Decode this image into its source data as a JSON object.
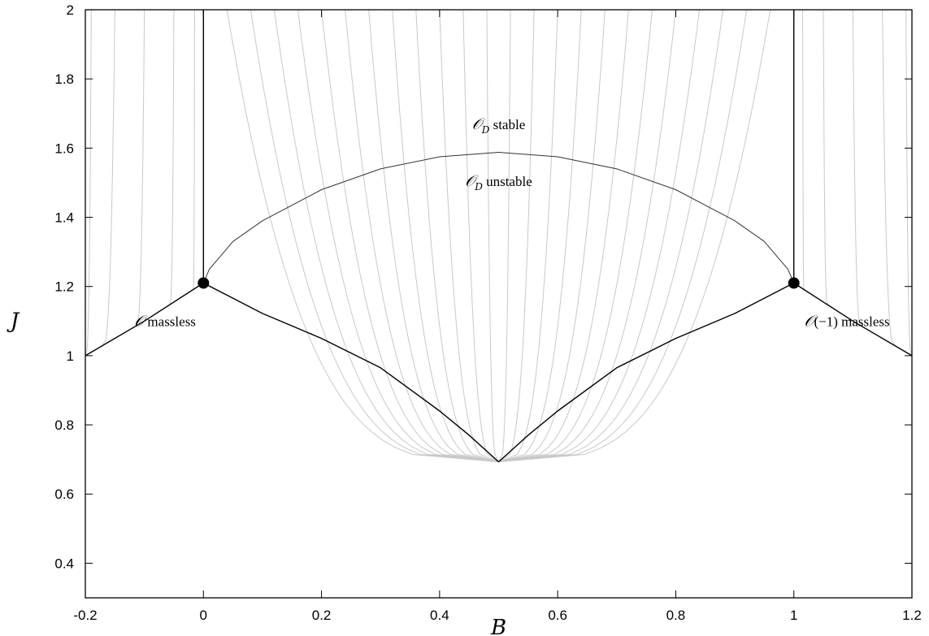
{
  "chart_data": {
    "type": "line",
    "title": "",
    "xlabel": "B",
    "ylabel": "J",
    "xlim": [
      -0.2,
      1.2
    ],
    "ylim": [
      0.3,
      2.0
    ],
    "x_ticks": [
      "-0.2",
      "0",
      "0.2",
      "0.4",
      "0.6",
      "0.8",
      "1",
      "1.2"
    ],
    "y_ticks": [
      "0.4",
      "0.6",
      "0.8",
      "1",
      "1.2",
      "1.4",
      "1.6",
      "1.8",
      "2"
    ],
    "grid": false,
    "legend": "none",
    "colors": {
      "boundary": "#000000",
      "flow": "#c8c8c8",
      "point": "#000000"
    },
    "tip": {
      "B": 0.5,
      "J": 0.693
    },
    "critical_points": [
      {
        "B": 0.0,
        "J": 1.21
      },
      {
        "B": 1.0,
        "J": 1.21
      }
    ],
    "series": [
      {
        "role": "lower-boundary-left",
        "x": [
          0.0,
          0.1,
          0.2,
          0.3,
          0.4,
          0.45,
          0.5
        ],
        "y": [
          1.21,
          1.122,
          1.05,
          0.965,
          0.84,
          0.77,
          0.693
        ]
      },
      {
        "role": "lower-boundary-right",
        "x": [
          0.5,
          0.55,
          0.6,
          0.7,
          0.8,
          0.9,
          1.0
        ],
        "y": [
          0.693,
          0.77,
          0.84,
          0.965,
          1.05,
          1.122,
          1.21
        ]
      },
      {
        "role": "outer-boundary-left",
        "x": [
          -0.2,
          -0.1,
          0.0
        ],
        "y": [
          1.0,
          1.1,
          1.21
        ]
      },
      {
        "role": "outer-boundary-right",
        "x": [
          1.0,
          1.1,
          1.2
        ],
        "y": [
          1.21,
          1.1,
          1.0
        ]
      },
      {
        "role": "vertical-left",
        "x": [
          0.0,
          0.0
        ],
        "y": [
          1.21,
          2.0
        ]
      },
      {
        "role": "vertical-right",
        "x": [
          1.0,
          1.0
        ],
        "y": [
          1.21,
          2.0
        ]
      },
      {
        "role": "stability-arc",
        "x": [
          0.0,
          0.01,
          0.05,
          0.1,
          0.2,
          0.3,
          0.4,
          0.5,
          0.6,
          0.7,
          0.8,
          0.9,
          0.95,
          0.99,
          1.0
        ],
        "y": [
          1.21,
          1.25,
          1.33,
          1.39,
          1.48,
          1.54,
          1.575,
          1.588,
          1.575,
          1.54,
          1.48,
          1.39,
          1.33,
          1.25,
          1.21
        ]
      }
    ],
    "flow_lines": {
      "inner_top_B": [
        0.04,
        0.08,
        0.12,
        0.16,
        0.2,
        0.24,
        0.28,
        0.32,
        0.36,
        0.4,
        0.44,
        0.48,
        0.52,
        0.56,
        0.6,
        0.64,
        0.68,
        0.72,
        0.76,
        0.8,
        0.84,
        0.88,
        0.92,
        0.96
      ],
      "outer_left_top_B": [
        -0.19,
        -0.15,
        -0.1,
        -0.05,
        -0.015
      ],
      "outer_right_top_B": [
        1.015,
        1.05,
        1.1,
        1.15,
        1.19
      ]
    },
    "annotations": [
      {
        "script": "𝒪",
        "text": " massless",
        "at": {
          "B": -0.065,
          "J": 1.085
        }
      },
      {
        "script": "𝒪",
        "text": "(−1) massless",
        "at": {
          "B": 1.09,
          "J": 1.085
        }
      },
      {
        "script": "𝒪",
        "sub": "D",
        "text": " stable",
        "at": {
          "B": 0.5,
          "J": 1.655
        }
      },
      {
        "script": "𝒪",
        "sub": "D",
        "text": " unstable",
        "at": {
          "B": 0.5,
          "J": 1.49
        }
      }
    ]
  }
}
